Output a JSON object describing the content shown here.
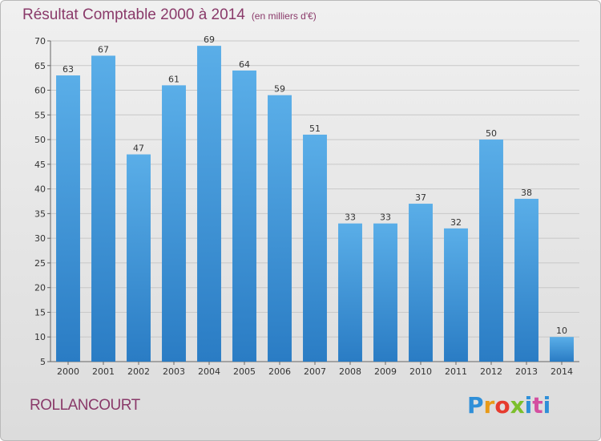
{
  "header": {
    "title": "Résultat Comptable 2000 à 2014",
    "subtitle": "(en milliers d'€)"
  },
  "footer": {
    "commune": "ROLLANCOURT",
    "logo_text": "Proxiti"
  },
  "colors": {
    "bar_top": "#5aaee8",
    "bar_bottom": "#2a7cc4",
    "title": "#8a3a6a",
    "grid": "#c8c8c8"
  },
  "chart_data": {
    "type": "bar",
    "categories": [
      "2000",
      "2001",
      "2002",
      "2003",
      "2004",
      "2005",
      "2006",
      "2007",
      "2008",
      "2009",
      "2010",
      "2011",
      "2012",
      "2013",
      "2014"
    ],
    "values": [
      63,
      67,
      47,
      61,
      69,
      64,
      59,
      51,
      33,
      33,
      37,
      32,
      50,
      38,
      10
    ],
    "ylim": [
      5,
      70
    ],
    "yticks": [
      5,
      10,
      15,
      20,
      25,
      30,
      35,
      40,
      45,
      50,
      55,
      60,
      65,
      70
    ],
    "grid": true,
    "data_labels": true
  }
}
